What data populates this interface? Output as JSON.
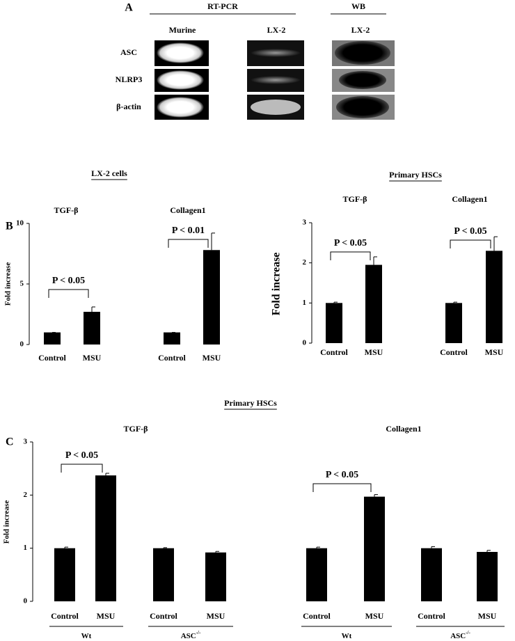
{
  "panel_a": {
    "label": "A",
    "header_rtpcr": "RT-PCR",
    "header_wb": "WB",
    "columns": [
      "Murine",
      "LX-2",
      "LX-2"
    ],
    "rows": [
      "ASC",
      "NLRP3",
      "β-actin"
    ]
  },
  "chart_data": [
    {
      "type": "bar",
      "panel": "B",
      "title": "LX-2 cells",
      "y_label": "Fold increase",
      "categories": [
        "Control",
        "MSU",
        "Control",
        "MSU"
      ],
      "values": [
        1,
        2.7,
        1,
        7.8
      ],
      "errors": [
        0,
        0.4,
        0,
        1.4
      ],
      "groups": [
        {
          "name": "TGF-β",
          "annotation": "P < 0.05"
        },
        {
          "name": "Collagen1",
          "annotation": "P < 0.01"
        }
      ],
      "ylim": [
        0,
        10
      ],
      "yticks": [
        0,
        5,
        10
      ],
      "color": "#000000"
    },
    {
      "type": "bar",
      "title": "Primary HSCs",
      "y_label": "Fold increase",
      "categories": [
        "Control",
        "MSU",
        "Control",
        "MSU"
      ],
      "values": [
        1,
        1.95,
        1,
        2.3
      ],
      "errors": [
        0.02,
        0.2,
        0.02,
        0.35
      ],
      "groups": [
        {
          "name": "TGF-β",
          "annotation": "P < 0.05"
        },
        {
          "name": "Collagen1",
          "annotation": "P < 0.05"
        }
      ],
      "ylim": [
        0,
        3
      ],
      "yticks": [
        0,
        1,
        2,
        3
      ],
      "color": "#000000"
    },
    {
      "type": "bar",
      "panel": "C",
      "title": "Primary HSCs",
      "y_label": "Fold increase",
      "categories": [
        "Control",
        "MSU",
        "Control",
        "MSU",
        "Control",
        "MSU",
        "Control",
        "MSU"
      ],
      "values": [
        1,
        2.37,
        1,
        0.92,
        1,
        1.97,
        1,
        0.93
      ],
      "errors": [
        0.02,
        0.04,
        0.01,
        0.02,
        0.02,
        0.04,
        0.03,
        0.03
      ],
      "groups": [
        {
          "name": "TGF-β",
          "annotation": "P < 0.05",
          "subgroups": [
            {
              "label": "Wt"
            },
            {
              "label": "ASC",
              "sup": "-/-"
            }
          ]
        },
        {
          "name": "Collagen1",
          "annotation": "P < 0.05",
          "subgroups": [
            {
              "label": "Wt"
            },
            {
              "label": "ASC",
              "sup": "-/-"
            }
          ]
        }
      ],
      "ylim": [
        0,
        3
      ],
      "yticks": [
        0,
        1,
        2,
        3
      ],
      "color": "#000000"
    }
  ]
}
